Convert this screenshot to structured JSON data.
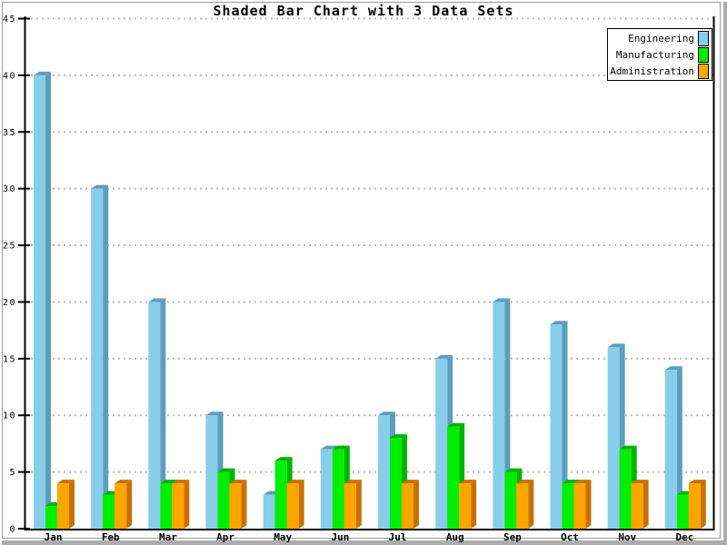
{
  "window": {
    "background": "#ffffff",
    "frame_border_color": "#999999",
    "edge_strip_color": "#acacac"
  },
  "chart_data": {
    "type": "bar",
    "style": "shaded-3d",
    "title": "Shaded Bar Chart with 3 Data Sets",
    "categories": [
      "Jan",
      "Feb",
      "Mar",
      "Apr",
      "May",
      "Jun",
      "Jul",
      "Aug",
      "Sep",
      "Oct",
      "Nov",
      "Dec"
    ],
    "series": [
      {
        "name": "Engineering",
        "color": "#87CEEB",
        "shade": "#5B9DBC",
        "values": [
          40,
          30,
          20,
          10,
          3,
          7,
          10,
          15,
          20,
          18,
          16,
          14
        ]
      },
      {
        "name": "Manufacturing",
        "color": "#00EE00",
        "shade": "#00B400",
        "values": [
          2,
          3,
          4,
          5,
          6,
          7,
          8,
          9,
          5,
          4,
          7,
          3
        ]
      },
      {
        "name": "Administration",
        "color": "#FFA500",
        "shade": "#C87000",
        "values": [
          4,
          4,
          4,
          4,
          4,
          4,
          4,
          4,
          4,
          4,
          4,
          4
        ]
      }
    ],
    "xlabel": "",
    "ylabel": "",
    "ylim": [
      0,
      45
    ],
    "ytick_step": 5,
    "ytick_labels": [
      "0",
      "5",
      "10",
      "15",
      "20",
      "25",
      "30",
      "35",
      "40",
      "45"
    ],
    "grid": "horizontal-dotted",
    "grid_color": "#B8B8B8",
    "axis_color": "#000000",
    "text_color": "#000000",
    "legend_position": "top-right",
    "legend_entries": [
      "Engineering",
      "Manufacturing",
      "Administration"
    ]
  }
}
